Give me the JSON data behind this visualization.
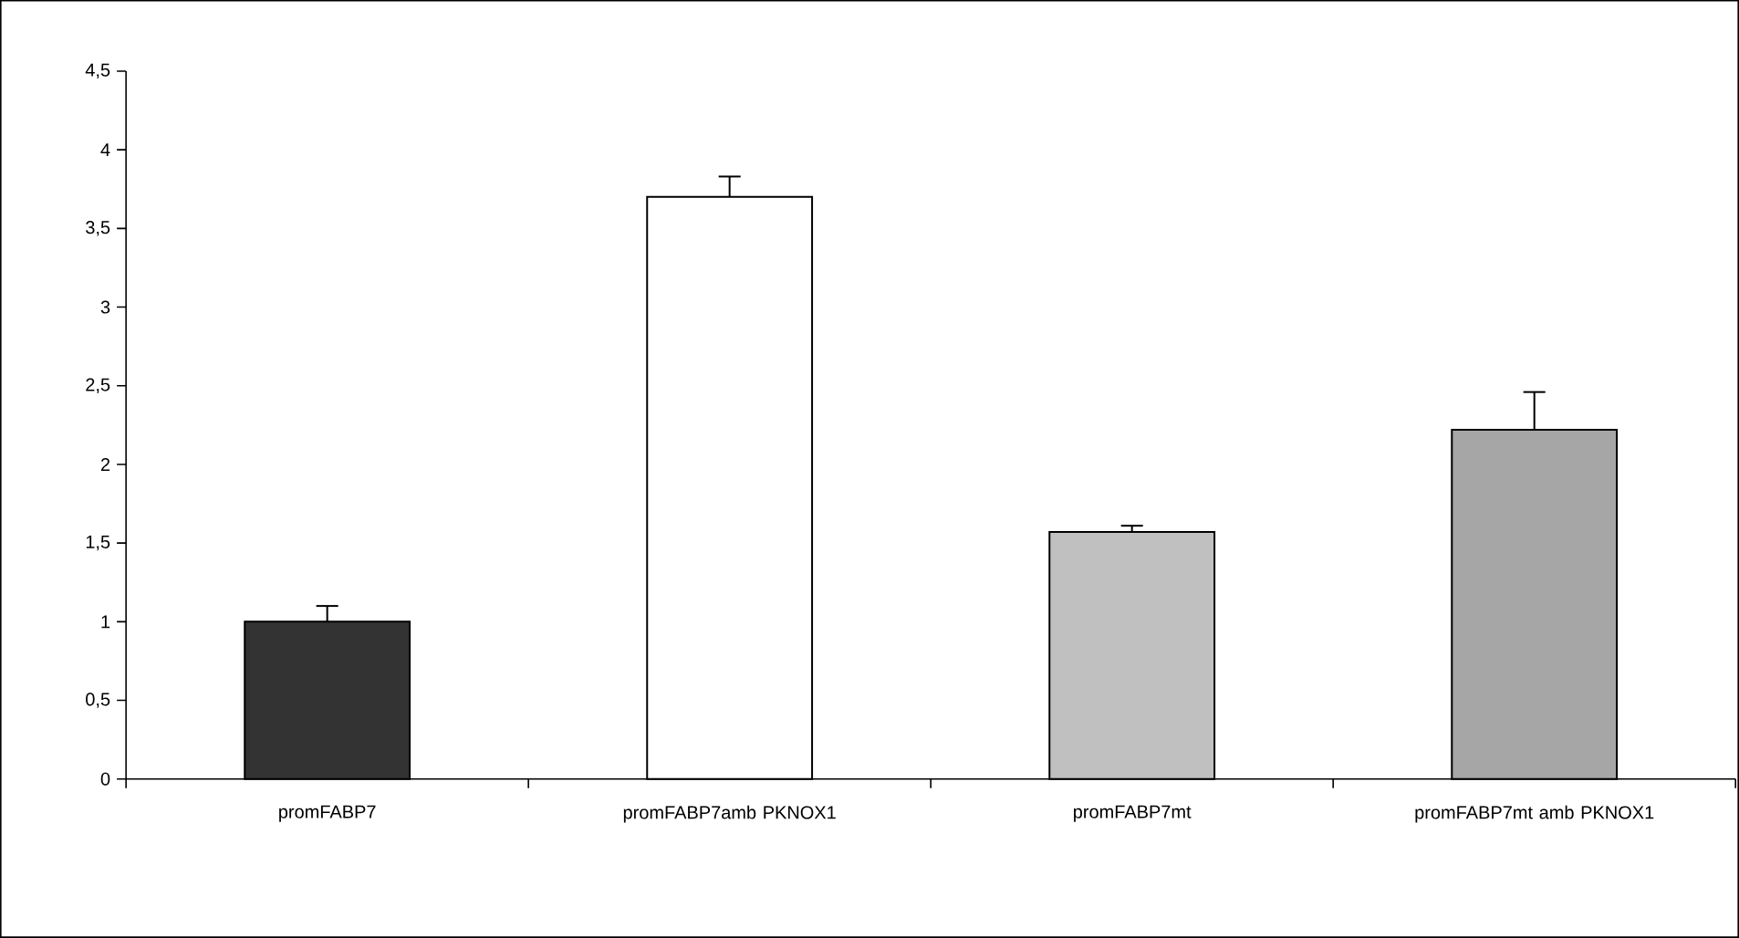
{
  "chart_data": {
    "type": "bar",
    "categories": [
      "promFABP7",
      "promFABP7amb PKNOX1",
      "promFABP7mt",
      "promFABP7mt amb PKNOX1"
    ],
    "values": [
      1.0,
      3.7,
      1.57,
      2.22
    ],
    "errors": [
      0.1,
      0.13,
      0.04,
      0.24
    ],
    "colors": [
      "#333333",
      "#ffffff",
      "#c0c0c0",
      "#a6a6a6"
    ],
    "ylim": [
      0,
      4.5
    ],
    "yticks": [
      0,
      {
        "value": 0.5,
        "label": "0,5"
      },
      1,
      {
        "value": 1.5,
        "label": "1,5"
      },
      2,
      {
        "value": 2.5,
        "label": "2,5"
      },
      3,
      {
        "value": 3.5,
        "label": "3,5"
      },
      4,
      {
        "value": 4.5,
        "label": "4,5"
      }
    ]
  }
}
